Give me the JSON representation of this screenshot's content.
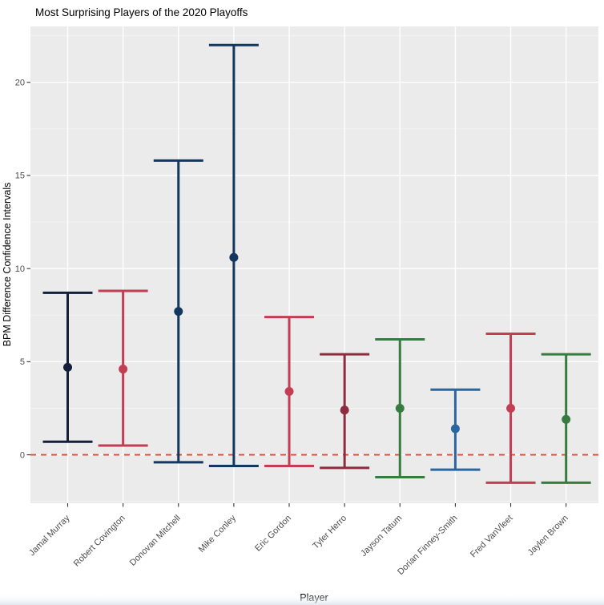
{
  "chart_data": {
    "type": "errorbar",
    "title": "Most Surprising Players of the 2020 Playoffs",
    "xlabel": "Player",
    "ylabel": "BPM Difference Confidence Intervals",
    "ylim": [
      -2.6,
      23.0
    ],
    "yticks": [
      0,
      5,
      10,
      15,
      20
    ],
    "yticks_minor": [
      -2.5,
      2.5,
      7.5,
      12.5,
      17.5,
      22.5
    ],
    "grid": true,
    "legend": "none",
    "reference_line": {
      "y": 0,
      "style": "dashed",
      "color": "#e8462f"
    },
    "categories": [
      "Jamal Murray",
      "Robert Covington",
      "Donovan Mitchell",
      "Mike Conley",
      "Eric Gordon",
      "Tyler Herro",
      "Jayson Tatum",
      "Dorian Finney-Smith",
      "Fred VanVleet",
      "Jaylen Brown"
    ],
    "players": [
      {
        "name": "Jamal Murray",
        "color": "#14203a",
        "lower": 0.7,
        "estimate": 4.7,
        "upper": 8.7
      },
      {
        "name": "Robert Covington",
        "color": "#c23e52",
        "lower": 0.5,
        "estimate": 4.6,
        "upper": 8.8
      },
      {
        "name": "Donovan Mitchell",
        "color": "#14375f",
        "lower": -0.4,
        "estimate": 7.7,
        "upper": 15.8
      },
      {
        "name": "Mike Conley",
        "color": "#14375f",
        "lower": -0.6,
        "estimate": 10.6,
        "upper": 22.0
      },
      {
        "name": "Eric Gordon",
        "color": "#c23e52",
        "lower": -0.6,
        "estimate": 3.4,
        "upper": 7.4
      },
      {
        "name": "Tyler Herro",
        "color": "#8e2c3f",
        "lower": -0.7,
        "estimate": 2.4,
        "upper": 5.4
      },
      {
        "name": "Jayson Tatum",
        "color": "#377b40",
        "lower": -1.2,
        "estimate": 2.5,
        "upper": 6.2
      },
      {
        "name": "Dorian Finney-Smith",
        "color": "#2b669e",
        "lower": -0.8,
        "estimate": 1.4,
        "upper": 3.5
      },
      {
        "name": "Fred VanVleet",
        "color": "#c23e52",
        "lower": -1.5,
        "estimate": 2.5,
        "upper": 6.5
      },
      {
        "name": "Jaylen Brown",
        "color": "#377b40",
        "lower": -1.5,
        "estimate": 1.9,
        "upper": 5.4
      }
    ]
  },
  "colors": {
    "panel_background": "#ebebeb",
    "gridline_major": "#ffffff",
    "gridline_minor": "#f7f7f7",
    "tick_mark": "#333333",
    "tick_label": "#4d4d4d",
    "axis_title": "#000000",
    "plot_title": "#000000",
    "page_background": "#ffffff",
    "bottom_edge_tint": "#e9edf2"
  }
}
